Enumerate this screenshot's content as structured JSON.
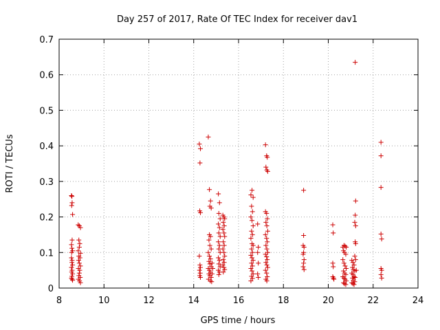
{
  "chart_data": {
    "type": "scatter",
    "title": "Day 257 of 2017, Rate Of TEC Index for receiver dav1",
    "xlabel": "GPS time / hours",
    "ylabel": "ROTI / TECUs",
    "xlim": [
      8,
      24
    ],
    "ylim": [
      0,
      0.7
    ],
    "xticks": [
      "8",
      "10",
      "12",
      "14",
      "16",
      "18",
      "20",
      "22",
      "24"
    ],
    "yticks": [
      "0",
      "0.1",
      "0.2",
      "0.3",
      "0.4",
      "0.5",
      "0.6",
      "0.7"
    ],
    "grid": true,
    "marker": "+",
    "color": "#cc0000",
    "series": [
      {
        "points": [
          [
            8.55,
            0.26
          ],
          [
            8.57,
            0.258
          ],
          [
            8.58,
            0.24
          ],
          [
            8.56,
            0.232
          ],
          [
            8.6,
            0.207
          ],
          [
            8.58,
            0.135
          ],
          [
            8.55,
            0.122
          ],
          [
            8.57,
            0.112
          ],
          [
            8.6,
            0.105
          ],
          [
            8.56,
            0.1
          ],
          [
            8.55,
            0.085
          ],
          [
            8.58,
            0.078
          ],
          [
            8.57,
            0.072
          ],
          [
            8.6,
            0.065
          ],
          [
            8.55,
            0.058
          ],
          [
            8.58,
            0.05
          ],
          [
            8.56,
            0.045
          ],
          [
            8.6,
            0.04
          ],
          [
            8.57,
            0.033
          ],
          [
            8.55,
            0.028
          ],
          [
            8.58,
            0.025
          ],
          [
            8.6,
            0.022
          ],
          [
            8.85,
            0.178
          ],
          [
            8.9,
            0.175
          ],
          [
            8.95,
            0.17
          ],
          [
            8.88,
            0.135
          ],
          [
            8.92,
            0.125
          ],
          [
            8.9,
            0.115
          ],
          [
            8.85,
            0.105
          ],
          [
            8.95,
            0.098
          ],
          [
            8.88,
            0.09
          ],
          [
            8.93,
            0.085
          ],
          [
            8.87,
            0.078
          ],
          [
            8.9,
            0.07
          ],
          [
            8.95,
            0.062
          ],
          [
            8.86,
            0.055
          ],
          [
            8.92,
            0.05
          ],
          [
            8.9,
            0.042
          ],
          [
            8.88,
            0.035
          ],
          [
            8.94,
            0.03
          ],
          [
            8.86,
            0.025
          ],
          [
            8.91,
            0.02
          ],
          [
            8.95,
            0.015
          ],
          [
            14.25,
            0.405
          ],
          [
            14.3,
            0.392
          ],
          [
            14.28,
            0.352
          ],
          [
            14.27,
            0.217
          ],
          [
            14.3,
            0.212
          ],
          [
            14.25,
            0.09
          ],
          [
            14.28,
            0.065
          ],
          [
            14.3,
            0.058
          ],
          [
            14.26,
            0.05
          ],
          [
            14.29,
            0.042
          ],
          [
            14.27,
            0.035
          ],
          [
            14.3,
            0.03
          ],
          [
            14.65,
            0.425
          ],
          [
            14.7,
            0.277
          ],
          [
            14.75,
            0.245
          ],
          [
            14.72,
            0.23
          ],
          [
            14.78,
            0.225
          ],
          [
            14.7,
            0.15
          ],
          [
            14.75,
            0.145
          ],
          [
            14.68,
            0.135
          ],
          [
            14.72,
            0.12
          ],
          [
            14.78,
            0.11
          ],
          [
            14.65,
            0.1
          ],
          [
            14.7,
            0.09
          ],
          [
            14.75,
            0.082
          ],
          [
            14.68,
            0.075
          ],
          [
            14.72,
            0.068
          ],
          [
            14.78,
            0.06
          ],
          [
            14.65,
            0.055
          ],
          [
            14.7,
            0.05
          ],
          [
            14.75,
            0.045
          ],
          [
            14.68,
            0.04
          ],
          [
            14.72,
            0.035
          ],
          [
            14.78,
            0.03
          ],
          [
            14.66,
            0.025
          ],
          [
            14.74,
            0.02
          ],
          [
            14.8,
            0.018
          ],
          [
            14.82,
            0.07
          ],
          [
            14.85,
            0.055
          ],
          [
            14.82,
            0.04
          ],
          [
            15.1,
            0.265
          ],
          [
            15.15,
            0.24
          ],
          [
            15.12,
            0.21
          ],
          [
            15.18,
            0.195
          ],
          [
            15.1,
            0.18
          ],
          [
            15.15,
            0.17
          ],
          [
            15.12,
            0.155
          ],
          [
            15.18,
            0.145
          ],
          [
            15.1,
            0.13
          ],
          [
            15.15,
            0.12
          ],
          [
            15.12,
            0.11
          ],
          [
            15.18,
            0.1
          ],
          [
            15.1,
            0.085
          ],
          [
            15.15,
            0.078
          ],
          [
            15.12,
            0.068
          ],
          [
            15.18,
            0.06
          ],
          [
            15.1,
            0.05
          ],
          [
            15.15,
            0.045
          ],
          [
            15.12,
            0.038
          ],
          [
            15.3,
            0.205
          ],
          [
            15.35,
            0.2
          ],
          [
            15.38,
            0.195
          ],
          [
            15.32,
            0.185
          ],
          [
            15.36,
            0.175
          ],
          [
            15.3,
            0.165
          ],
          [
            15.35,
            0.155
          ],
          [
            15.38,
            0.145
          ],
          [
            15.32,
            0.13
          ],
          [
            15.36,
            0.12
          ],
          [
            15.3,
            0.11
          ],
          [
            15.35,
            0.1
          ],
          [
            15.38,
            0.09
          ],
          [
            15.32,
            0.08
          ],
          [
            15.36,
            0.072
          ],
          [
            15.3,
            0.065
          ],
          [
            15.35,
            0.058
          ],
          [
            15.38,
            0.052
          ],
          [
            15.32,
            0.045
          ],
          [
            16.55,
            0.262
          ],
          [
            16.6,
            0.275
          ],
          [
            16.65,
            0.255
          ],
          [
            16.58,
            0.23
          ],
          [
            16.62,
            0.215
          ],
          [
            16.55,
            0.2
          ],
          [
            16.6,
            0.19
          ],
          [
            16.65,
            0.175
          ],
          [
            16.58,
            0.16
          ],
          [
            16.62,
            0.15
          ],
          [
            16.55,
            0.14
          ],
          [
            16.6,
            0.125
          ],
          [
            16.65,
            0.12
          ],
          [
            16.58,
            0.11
          ],
          [
            16.62,
            0.1
          ],
          [
            16.55,
            0.092
          ],
          [
            16.6,
            0.085
          ],
          [
            16.65,
            0.078
          ],
          [
            16.58,
            0.07
          ],
          [
            16.62,
            0.062
          ],
          [
            16.55,
            0.055
          ],
          [
            16.6,
            0.048
          ],
          [
            16.65,
            0.04
          ],
          [
            16.58,
            0.033
          ],
          [
            16.62,
            0.027
          ],
          [
            16.55,
            0.02
          ],
          [
            16.85,
            0.18
          ],
          [
            16.88,
            0.115
          ],
          [
            16.85,
            0.1
          ],
          [
            16.88,
            0.07
          ],
          [
            16.85,
            0.04
          ],
          [
            16.88,
            0.03
          ],
          [
            17.2,
            0.403
          ],
          [
            17.25,
            0.372
          ],
          [
            17.28,
            0.368
          ],
          [
            17.22,
            0.34
          ],
          [
            17.26,
            0.332
          ],
          [
            17.3,
            0.328
          ],
          [
            17.2,
            0.215
          ],
          [
            17.25,
            0.21
          ],
          [
            17.28,
            0.195
          ],
          [
            17.22,
            0.185
          ],
          [
            17.26,
            0.175
          ],
          [
            17.3,
            0.16
          ],
          [
            17.2,
            0.15
          ],
          [
            17.25,
            0.14
          ],
          [
            17.28,
            0.13
          ],
          [
            17.22,
            0.12
          ],
          [
            17.26,
            0.11
          ],
          [
            17.3,
            0.1
          ],
          [
            17.2,
            0.095
          ],
          [
            17.25,
            0.088
          ],
          [
            17.28,
            0.08
          ],
          [
            17.22,
            0.072
          ],
          [
            17.26,
            0.065
          ],
          [
            17.3,
            0.058
          ],
          [
            17.2,
            0.05
          ],
          [
            17.25,
            0.042
          ],
          [
            17.28,
            0.032
          ],
          [
            17.22,
            0.025
          ],
          [
            17.26,
            0.02
          ],
          [
            18.9,
            0.275
          ],
          [
            18.9,
            0.148
          ],
          [
            18.88,
            0.12
          ],
          [
            18.92,
            0.115
          ],
          [
            18.9,
            0.1
          ],
          [
            18.88,
            0.095
          ],
          [
            18.92,
            0.08
          ],
          [
            18.9,
            0.07
          ],
          [
            18.88,
            0.06
          ],
          [
            18.92,
            0.052
          ],
          [
            20.2,
            0.178
          ],
          [
            20.22,
            0.155
          ],
          [
            20.2,
            0.07
          ],
          [
            20.22,
            0.06
          ],
          [
            20.2,
            0.032
          ],
          [
            20.23,
            0.028
          ],
          [
            20.25,
            0.025
          ],
          [
            20.65,
            0.115
          ],
          [
            20.7,
            0.12
          ],
          [
            20.75,
            0.118
          ],
          [
            20.8,
            0.115
          ],
          [
            20.68,
            0.105
          ],
          [
            20.72,
            0.1
          ],
          [
            20.78,
            0.095
          ],
          [
            20.65,
            0.08
          ],
          [
            20.7,
            0.07
          ],
          [
            20.75,
            0.062
          ],
          [
            20.8,
            0.055
          ],
          [
            20.68,
            0.048
          ],
          [
            20.72,
            0.042
          ],
          [
            20.78,
            0.038
          ],
          [
            20.65,
            0.032
          ],
          [
            20.7,
            0.028
          ],
          [
            20.75,
            0.025
          ],
          [
            20.8,
            0.02
          ],
          [
            20.68,
            0.015
          ],
          [
            20.72,
            0.012
          ],
          [
            20.78,
            0.01
          ],
          [
            21.05,
            0.078
          ],
          [
            21.1,
            0.072
          ],
          [
            21.15,
            0.065
          ],
          [
            21.08,
            0.058
          ],
          [
            21.12,
            0.052
          ],
          [
            21.18,
            0.048
          ],
          [
            21.05,
            0.042
          ],
          [
            21.1,
            0.038
          ],
          [
            21.15,
            0.032
          ],
          [
            21.08,
            0.028
          ],
          [
            21.12,
            0.022
          ],
          [
            21.18,
            0.018
          ],
          [
            21.05,
            0.015
          ],
          [
            21.1,
            0.012
          ],
          [
            21.15,
            0.01
          ],
          [
            21.2,
            0.03
          ],
          [
            21.2,
            0.635
          ],
          [
            21.22,
            0.245
          ],
          [
            21.2,
            0.205
          ],
          [
            21.18,
            0.185
          ],
          [
            21.22,
            0.175
          ],
          [
            21.2,
            0.13
          ],
          [
            21.22,
            0.125
          ],
          [
            21.18,
            0.09
          ],
          [
            21.22,
            0.08
          ],
          [
            21.25,
            0.05
          ],
          [
            22.35,
            0.41
          ],
          [
            22.35,
            0.372
          ],
          [
            22.35,
            0.283
          ],
          [
            22.35,
            0.152
          ],
          [
            22.38,
            0.138
          ],
          [
            22.35,
            0.055
          ],
          [
            22.38,
            0.05
          ],
          [
            22.35,
            0.038
          ],
          [
            22.38,
            0.028
          ]
        ]
      }
    ]
  }
}
